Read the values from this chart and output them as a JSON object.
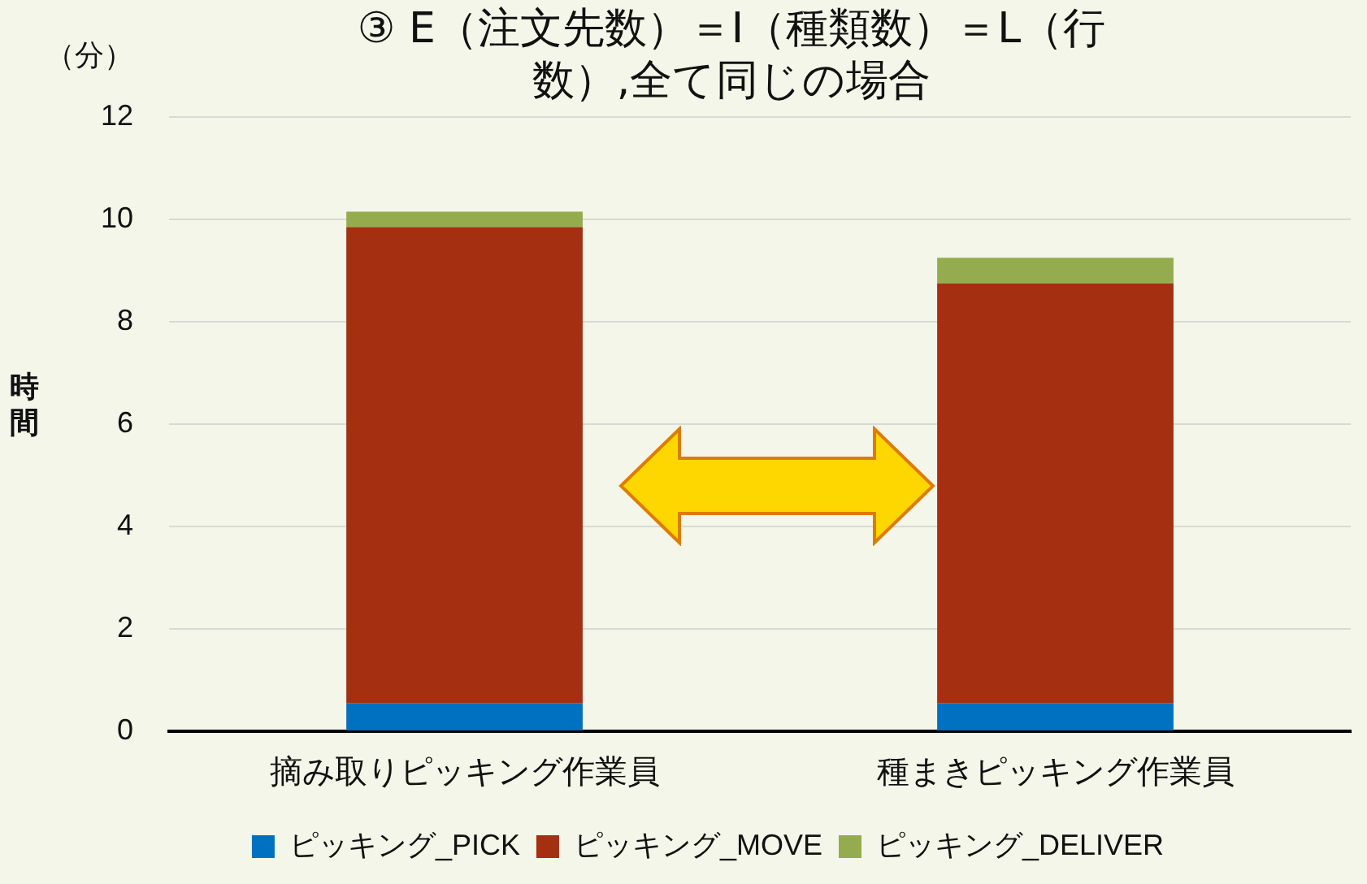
{
  "chart_data": {
    "type": "bar",
    "title": "③ E（注文先数）＝I（種類数）＝L（行数）,全て同じの場合",
    "ylabel": "時間",
    "annotations": [
      "（分）"
    ],
    "categories": [
      "摘み取りピッキング作業員",
      "種まきピッキング作業員"
    ],
    "series": [
      {
        "name": "ピッキング_PICK",
        "color": "#0070c0",
        "values": [
          0.55,
          0.55
        ]
      },
      {
        "name": "ピッキング_MOVE",
        "color": "#a52f11",
        "values": [
          9.3,
          8.2
        ]
      },
      {
        "name": "ピッキング_DELIVER",
        "color": "#94ac4e",
        "values": [
          0.3,
          0.5
        ]
      }
    ],
    "stacked": true,
    "ylim": [
      0,
      12
    ],
    "yticks": [
      0,
      2,
      4,
      6,
      8,
      10,
      12
    ],
    "grid": "y",
    "legend": "bottom"
  }
}
